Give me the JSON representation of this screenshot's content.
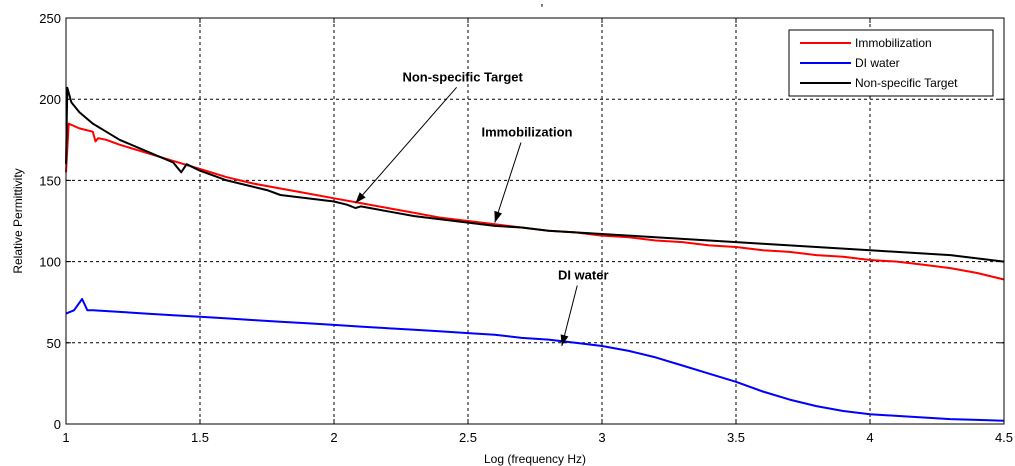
{
  "chart_data": {
    "type": "line",
    "title": "",
    "xlabel": "Log (frequency Hz)",
    "ylabel": "Relative Permittivity",
    "xlim": [
      1,
      4.5
    ],
    "ylim": [
      0,
      250
    ],
    "xticks": [
      1,
      1.5,
      2,
      2.5,
      3,
      3.5,
      4,
      4.5
    ],
    "xtick_labels": [
      "1",
      "1.5",
      "2",
      "2.5",
      "3",
      "3.5",
      "4",
      "4.5"
    ],
    "yticks": [
      0,
      50,
      100,
      150,
      200,
      250
    ],
    "ytick_labels": [
      "0",
      "50",
      "100",
      "150",
      "200",
      "250"
    ],
    "grid": true,
    "legend_position": "top-right",
    "series": [
      {
        "name": "Immobilization",
        "color": "#ff0000",
        "x": [
          1.0,
          1.01,
          1.05,
          1.1,
          1.11,
          1.12,
          1.15,
          1.2,
          1.3,
          1.4,
          1.5,
          1.6,
          1.7,
          1.8,
          1.9,
          2.0,
          2.1,
          2.2,
          2.3,
          2.4,
          2.5,
          2.6,
          2.7,
          2.8,
          2.9,
          3.0,
          3.1,
          3.2,
          3.3,
          3.4,
          3.5,
          3.6,
          3.7,
          3.8,
          3.9,
          4.0,
          4.1,
          4.2,
          4.3,
          4.4,
          4.5
        ],
        "y": [
          155,
          185,
          182,
          180,
          174,
          176,
          175,
          172,
          167,
          162,
          157,
          152,
          148,
          145,
          142,
          139,
          136,
          133,
          130,
          127,
          125,
          123,
          121,
          119,
          118,
          116,
          115,
          113,
          112,
          110,
          109,
          107,
          106,
          104,
          103,
          101,
          100,
          98,
          96,
          93,
          89
        ]
      },
      {
        "name": "DI water",
        "color": "#0000ff",
        "x": [
          1.0,
          1.03,
          1.06,
          1.08,
          1.1,
          1.2,
          1.3,
          1.4,
          1.5,
          1.6,
          1.7,
          1.8,
          1.9,
          2.0,
          2.1,
          2.2,
          2.3,
          2.4,
          2.5,
          2.6,
          2.7,
          2.8,
          2.9,
          3.0,
          3.1,
          3.2,
          3.3,
          3.4,
          3.5,
          3.6,
          3.7,
          3.8,
          3.9,
          4.0,
          4.1,
          4.2,
          4.3,
          4.4,
          4.5
        ],
        "y": [
          68,
          70,
          77,
          70,
          70,
          69,
          68,
          67,
          66,
          65,
          64,
          63,
          62,
          61,
          60,
          59,
          58,
          57,
          56,
          55,
          53,
          52,
          50,
          48,
          45,
          41,
          36,
          31,
          26,
          20,
          15,
          11,
          8,
          6,
          5,
          4,
          3,
          2.5,
          2
        ]
      },
      {
        "name": "Non-specific Target",
        "color": "#000000",
        "x": [
          1.0,
          1.005,
          1.02,
          1.05,
          1.1,
          1.15,
          1.2,
          1.3,
          1.4,
          1.43,
          1.45,
          1.5,
          1.6,
          1.7,
          1.75,
          1.8,
          1.9,
          2.0,
          2.05,
          2.08,
          2.1,
          2.2,
          2.3,
          2.4,
          2.5,
          2.6,
          2.7,
          2.8,
          2.9,
          3.0,
          3.1,
          3.2,
          3.3,
          3.4,
          3.5,
          3.6,
          3.7,
          3.8,
          3.9,
          4.0,
          4.1,
          4.2,
          4.3,
          4.4,
          4.5
        ],
        "y": [
          160,
          207,
          198,
          192,
          185,
          180,
          175,
          168,
          161,
          155,
          160,
          156,
          150,
          146,
          144,
          141,
          139,
          137,
          135,
          133,
          134,
          131,
          128,
          126,
          124,
          122,
          121,
          119,
          118,
          117,
          116,
          115,
          114,
          113,
          112,
          111,
          110,
          109,
          108,
          107,
          106,
          105,
          104,
          102,
          100
        ]
      }
    ],
    "annotations": [
      {
        "text": "Non-specific Target",
        "text_x": 2.48,
        "text_y": 211,
        "arrow_to_x": 2.08,
        "arrow_to_y": 136
      },
      {
        "text": "Immobilization",
        "text_x": 2.72,
        "text_y": 177,
        "arrow_to_x": 2.6,
        "arrow_to_y": 124
      },
      {
        "text": "DI water",
        "text_x": 2.93,
        "text_y": 89,
        "arrow_to_x": 2.85,
        "arrow_to_y": 48
      }
    ],
    "top_mark": "'"
  }
}
